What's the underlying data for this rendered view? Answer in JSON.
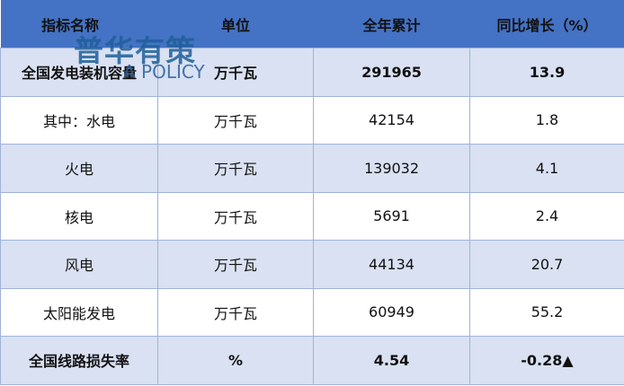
{
  "table": {
    "headers": [
      "指标名称",
      "单位",
      "全年累计",
      "同比增长（%）"
    ],
    "rows": [
      {
        "name": "全国发电装机容量",
        "unit": "万千瓦",
        "total": "291965",
        "growth": "13.9",
        "bold": true
      },
      {
        "name": "其中：水电",
        "unit": "万千瓦",
        "total": "42154",
        "growth": "1.8",
        "bold": false
      },
      {
        "name": "火电",
        "unit": "万千瓦",
        "total": "139032",
        "growth": "4.1",
        "bold": false
      },
      {
        "name": "核电",
        "unit": "万千瓦",
        "total": "5691",
        "growth": "2.4",
        "bold": false
      },
      {
        "name": "风电",
        "unit": "万千瓦",
        "total": "44134",
        "growth": "20.7",
        "bold": false
      },
      {
        "name": "太阳能发电",
        "unit": "万千瓦",
        "total": "60949",
        "growth": "55.2",
        "bold": false
      },
      {
        "name": "全国线路损失率",
        "unit": "%",
        "total": "4.54",
        "growth": "-0.28▲",
        "bold": true
      }
    ]
  },
  "watermark": {
    "cn": "普华有策",
    "en": "A POLICY"
  },
  "colors": {
    "header": "#4472C4",
    "row_alt": "#D9E1F2",
    "row": "#FFFFFF"
  }
}
